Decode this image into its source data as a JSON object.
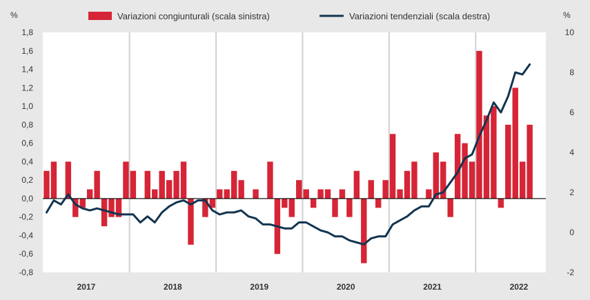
{
  "chart_data": {
    "type": "bar+line",
    "left_axis": {
      "unit_label": "%",
      "range": [
        -0.8,
        1.8
      ],
      "ticks": [
        "-0,8",
        "-0,6",
        "-0,4",
        "-0,2",
        "0,0",
        "0,2",
        "0,4",
        "0,6",
        "0,8",
        "1,0",
        "1,2",
        "1,4",
        "1,6",
        "1,8"
      ]
    },
    "right_axis": {
      "unit_label": "%",
      "range": [
        -2,
        10
      ],
      "ticks": [
        "-2",
        "0",
        "2",
        "4",
        "6",
        "8",
        "10"
      ]
    },
    "years": [
      "2017",
      "2018",
      "2019",
      "2020",
      "2021",
      "2022"
    ],
    "series": [
      {
        "name": "Variazioni congiunturali (scala sinistra)",
        "type": "bar",
        "axis": "left",
        "color": "#d62536",
        "values": [
          0.3,
          0.4,
          0.0,
          0.4,
          -0.2,
          -0.1,
          0.1,
          0.3,
          -0.3,
          -0.2,
          -0.2,
          0.4,
          0.3,
          0.0,
          0.3,
          0.1,
          0.3,
          0.2,
          0.3,
          0.4,
          -0.5,
          0.0,
          -0.2,
          -0.1,
          0.1,
          0.1,
          0.3,
          0.2,
          0.0,
          0.1,
          0.0,
          0.4,
          -0.6,
          -0.1,
          -0.2,
          0.2,
          0.1,
          -0.1,
          0.1,
          0.1,
          -0.2,
          0.1,
          -0.2,
          0.3,
          -0.7,
          0.2,
          -0.1,
          0.2,
          0.7,
          0.1,
          0.3,
          0.4,
          0.0,
          0.1,
          0.5,
          0.4,
          -0.2,
          0.7,
          0.6,
          0.4,
          1.6,
          0.9,
          1.0,
          -0.1,
          0.8,
          1.2,
          0.4,
          0.8
        ]
      },
      {
        "name": "Variazioni tendenziali (scala destra)",
        "type": "line",
        "axis": "right",
        "color": "#12344f",
        "values": [
          1.0,
          1.6,
          1.4,
          1.9,
          1.4,
          1.2,
          1.1,
          1.2,
          1.1,
          1.0,
          0.9,
          0.9,
          0.9,
          0.5,
          0.8,
          0.5,
          1.0,
          1.3,
          1.5,
          1.6,
          1.4,
          1.6,
          1.6,
          1.1,
          0.9,
          1.0,
          1.0,
          1.1,
          0.8,
          0.7,
          0.4,
          0.4,
          0.3,
          0.2,
          0.2,
          0.5,
          0.5,
          0.3,
          0.1,
          0.0,
          -0.2,
          -0.2,
          -0.4,
          -0.5,
          -0.6,
          -0.3,
          -0.2,
          -0.2,
          0.4,
          0.6,
          0.8,
          1.1,
          1.3,
          1.3,
          1.9,
          2.0,
          2.5,
          3.0,
          3.7,
          3.9,
          4.8,
          5.6,
          6.5,
          6.0,
          6.8,
          8.0,
          7.9,
          8.4
        ]
      }
    ],
    "grid": false,
    "legend_position": "top"
  }
}
